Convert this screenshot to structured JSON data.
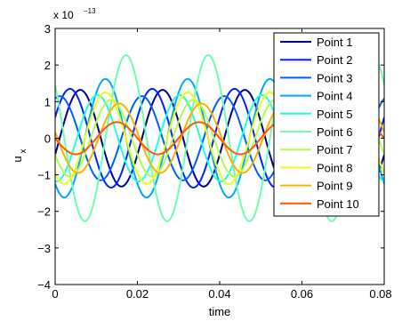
{
  "chart_data": {
    "type": "line",
    "xlabel": "time",
    "ylabel_main": "u",
    "ylabel_sub": "x",
    "exponent_prefix": "x 10",
    "exponent_power": "−13",
    "xlim": [
      0,
      0.08
    ],
    "ylim": [
      -4,
      3
    ],
    "x_ticks": [
      0,
      0.02,
      0.04,
      0.06,
      0.08
    ],
    "x_tick_labels": [
      "0",
      "0.02",
      "0.04",
      "0.06",
      "0.08"
    ],
    "y_ticks": [
      -4,
      -3,
      -2,
      -1,
      0,
      1,
      2,
      3
    ],
    "y_tick_labels": [
      "−4",
      "−3",
      "−2",
      "−1",
      "0",
      "1",
      "2",
      "3"
    ],
    "grid": false,
    "legend_position": "top-right",
    "signal_frequency": 50,
    "series": [
      {
        "name": "Point 1",
        "color": "#00008f",
        "amplitude": 1.32,
        "phase_deg": -20
      },
      {
        "name": "Point 2",
        "color": "#0024ff",
        "amplitude": 1.35,
        "phase_deg": 25
      },
      {
        "name": "Point 3",
        "color": "#0060ff",
        "amplitude": 1.15,
        "phase_deg": 70
      },
      {
        "name": "Point 4",
        "color": "#00a8ff",
        "amplitude": 1.62,
        "phase_deg": 230
      },
      {
        "name": "Point 5",
        "color": "#20ffe0",
        "amplitude": 1.18,
        "phase_deg": 265
      },
      {
        "name": "Point 6",
        "color": "#6effb0",
        "amplitude": 2.27,
        "phase_deg": 140
      },
      {
        "name": "Point 7",
        "color": "#b0ff4e",
        "amplitude": 1.05,
        "phase_deg": 205
      },
      {
        "name": "Point 8",
        "color": "#eeff10",
        "amplitude": 1.25,
        "phase_deg": 230
      },
      {
        "name": "Point 9",
        "color": "#ffb000",
        "amplitude": 0.95,
        "phase_deg": 170
      },
      {
        "name": "Point 10",
        "color": "#ff5a00",
        "amplitude": 0.44,
        "phase_deg": 180
      }
    ]
  }
}
